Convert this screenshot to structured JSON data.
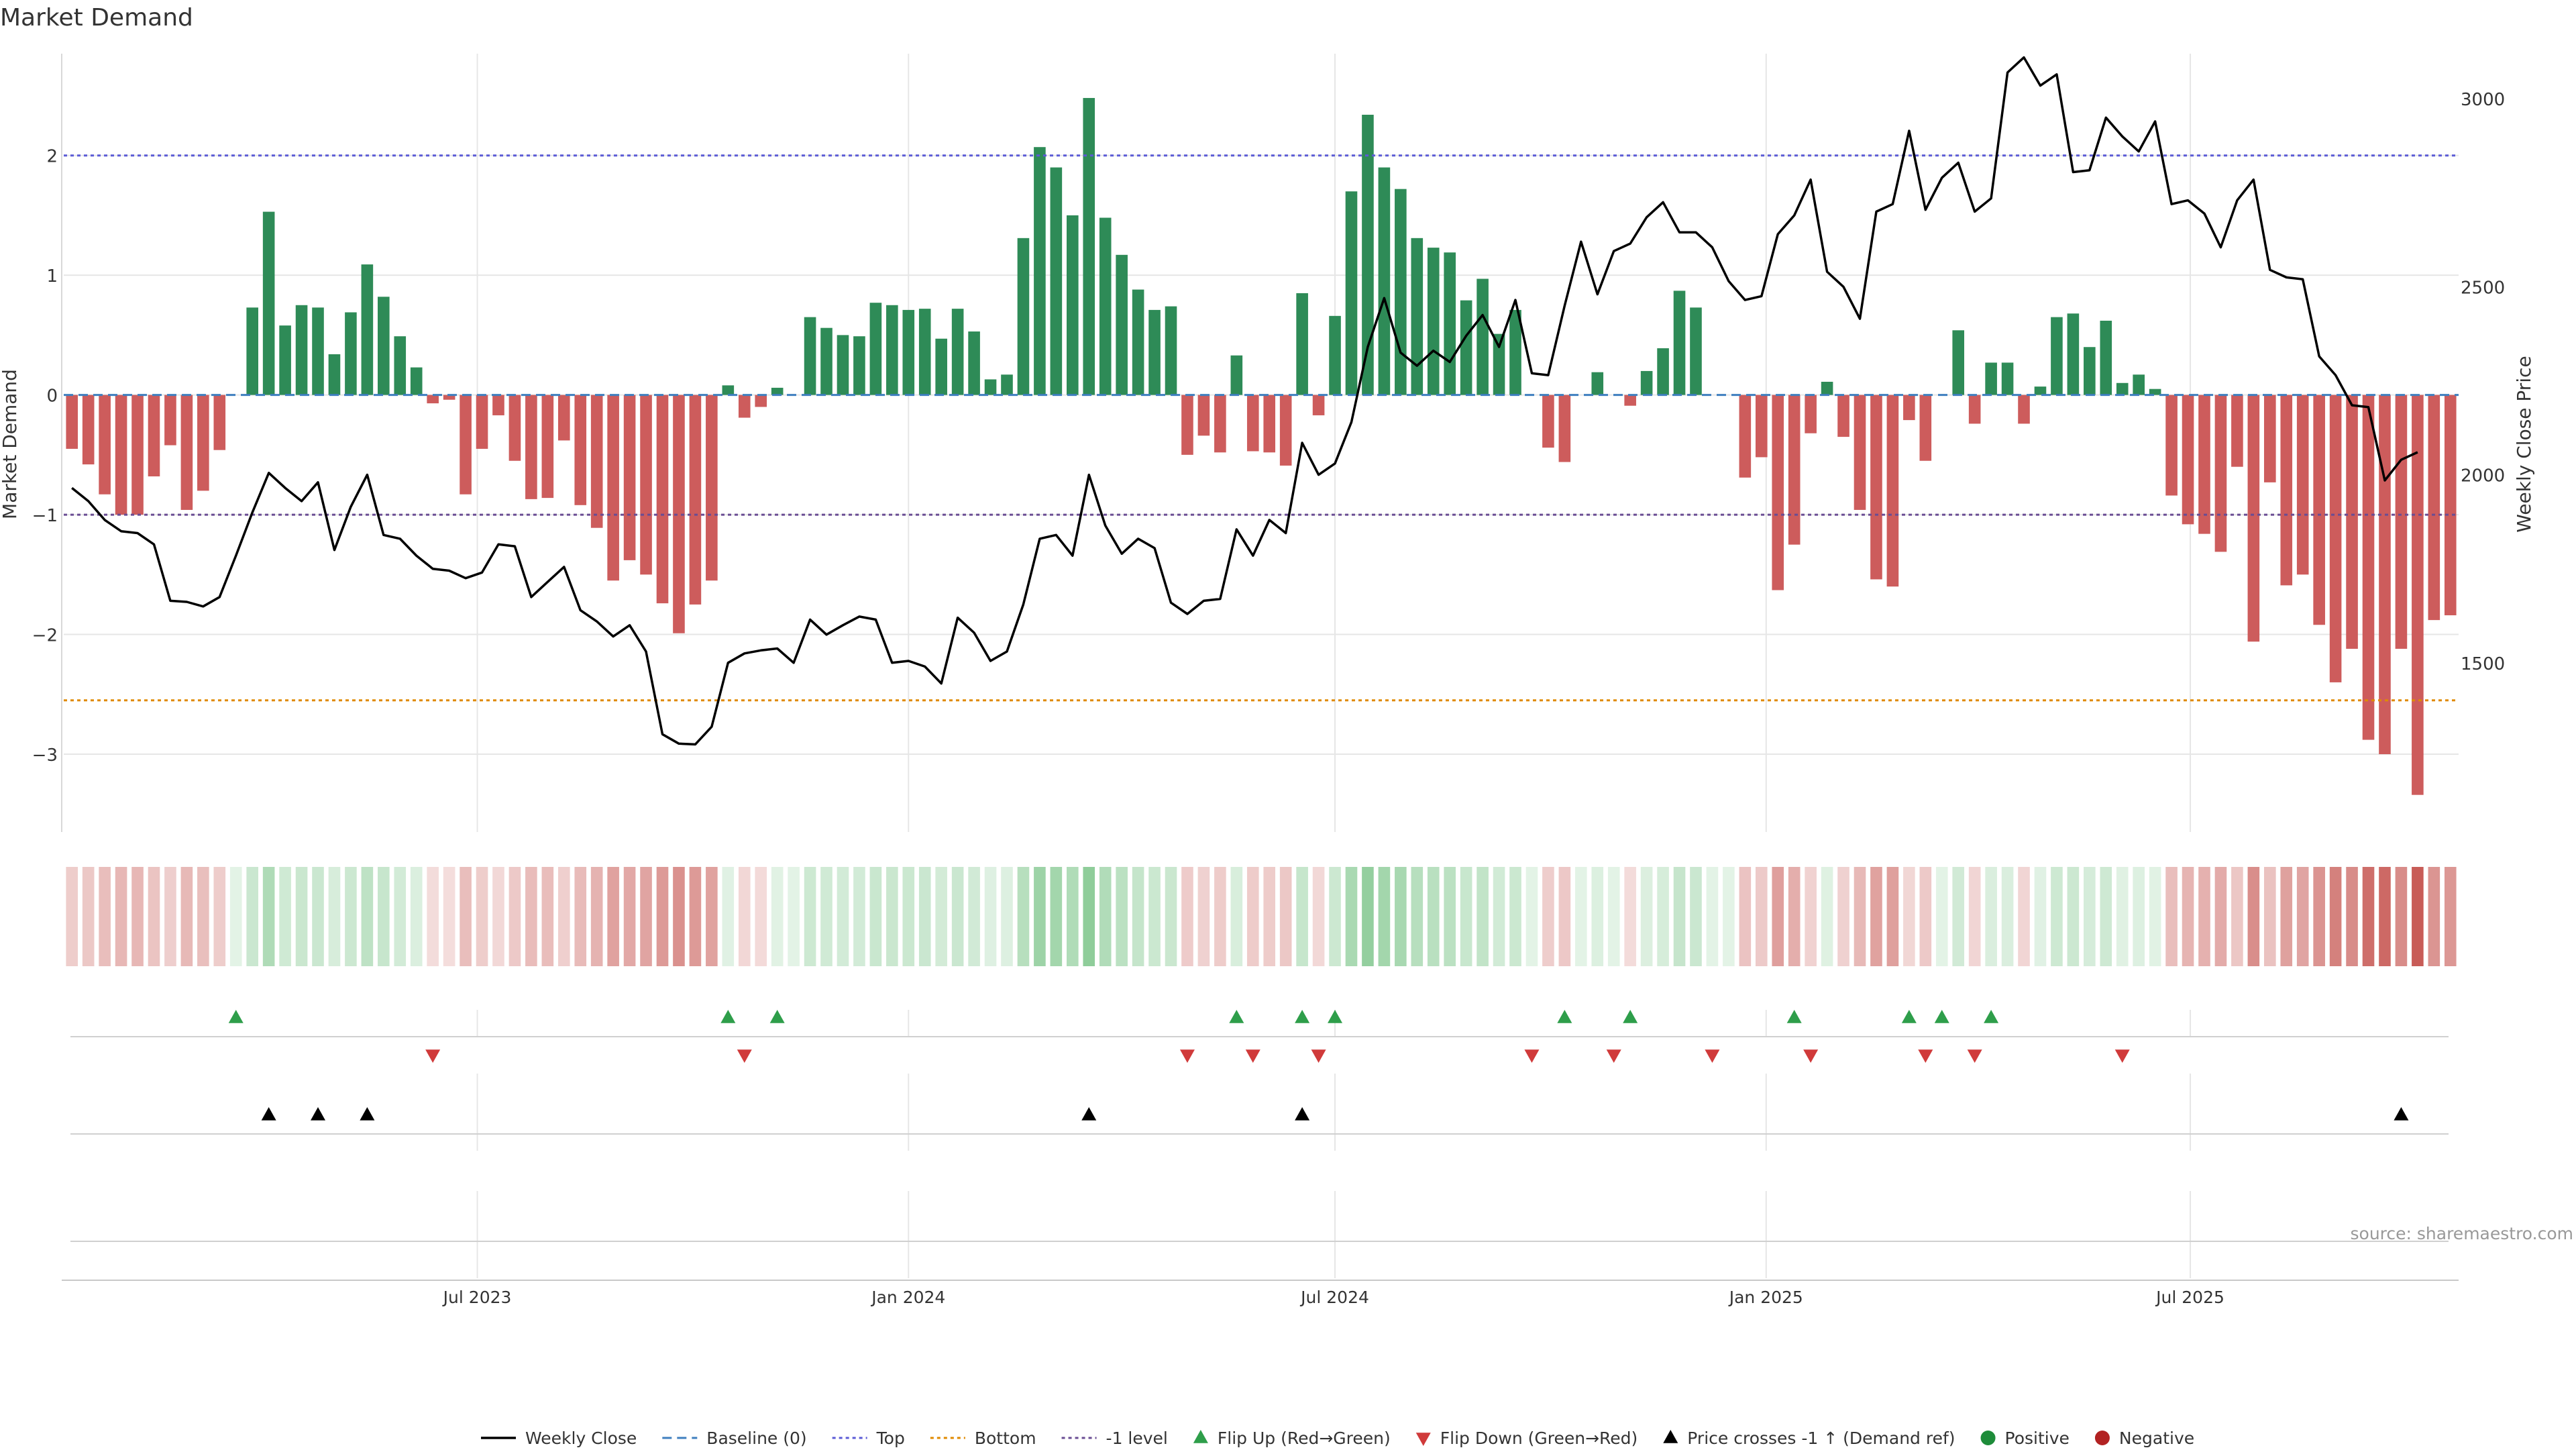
{
  "chart_data": {
    "type": "bar",
    "title": "Market Demand",
    "ylabel": "Market Demand",
    "y2label": "Weekly Close Price",
    "ylim": [
      -3.65,
      2.85
    ],
    "y2lim": [
      1050,
      3120
    ],
    "yticks": [
      2,
      1,
      0,
      -1,
      -2,
      -3
    ],
    "ytick_labels": [
      "2",
      "1",
      "0",
      "−1",
      "−2",
      "−3"
    ],
    "y2ticks": [
      3000,
      2500,
      2000,
      1500
    ],
    "start_date": "2023-01-09",
    "xticks": [
      {
        "label": "Jul 2023",
        "date": "2023-07-01"
      },
      {
        "label": "Jan 2024",
        "date": "2024-01-01"
      },
      {
        "label": "Jul 2024",
        "date": "2024-07-01"
      },
      {
        "label": "Jan 2025",
        "date": "2025-01-01"
      },
      {
        "label": "Jul 2025",
        "date": "2025-07-01"
      }
    ],
    "reference_lines": [
      {
        "name": "Top",
        "value": 2,
        "color": "#5b5bd6"
      },
      {
        "name": "Bottom",
        "value": -2.55,
        "color": "#e08a00"
      },
      {
        "name": "-1 level",
        "value": -1,
        "color": "#6a4c93"
      }
    ],
    "demand": [
      -0.45,
      -0.58,
      -0.83,
      -1.0,
      -1.0,
      -0.68,
      -0.42,
      -0.96,
      -0.8,
      -0.46,
      0,
      0.73,
      1.53,
      0.58,
      0.75,
      0.73,
      0.34,
      0.69,
      1.09,
      0.82,
      0.49,
      0.23,
      -0.07,
      -0.04,
      -0.83,
      -0.45,
      -0.17,
      -0.55,
      -0.87,
      -0.86,
      -0.38,
      -0.92,
      -1.11,
      -1.55,
      -1.38,
      -1.5,
      -1.74,
      -1.99,
      -1.75,
      -1.55,
      0.08,
      -0.19,
      -0.1,
      0.06,
      0,
      0.65,
      0.56,
      0.5,
      0.49,
      0.77,
      0.75,
      0.71,
      0.72,
      0.47,
      0.72,
      0.53,
      0.13,
      0.17,
      1.31,
      2.07,
      1.9,
      1.5,
      2.48,
      1.48,
      1.17,
      0.88,
      0.71,
      0.74,
      -0.5,
      -0.34,
      -0.48,
      0.33,
      -0.47,
      -0.48,
      -0.59,
      0.85,
      -0.17,
      0.66,
      1.7,
      2.34,
      1.9,
      1.72,
      1.31,
      1.23,
      1.19,
      0.79,
      0.97,
      0.51,
      0.71,
      0,
      -0.44,
      -0.56,
      0,
      0.19,
      0,
      -0.09,
      0.2,
      0.39,
      0.87,
      0.73,
      0,
      0,
      -0.69,
      -0.52,
      -1.63,
      -1.25,
      -0.32,
      0.11,
      -0.35,
      -0.96,
      -1.54,
      -1.6,
      -0.21,
      -0.55,
      0,
      0.54,
      -0.24,
      0.27,
      0.27,
      -0.24,
      0.07,
      0.65,
      0.68,
      0.4,
      0.62,
      0.1,
      0.17,
      0.05,
      -0.84,
      -1.08,
      -1.16,
      -1.31,
      -0.6,
      -2.06,
      -0.73,
      -1.59,
      -1.5,
      -1.92,
      -2.4,
      -2.12,
      -2.88,
      -3.0,
      -2.12,
      -3.34,
      -1.88,
      -1.84
    ],
    "close": [
      1965,
      1930,
      1880,
      1850,
      1845,
      1815,
      1665,
      1662,
      1650,
      1675,
      1785,
      1900,
      2005,
      1965,
      1930,
      1980,
      1800,
      1915,
      2000,
      1840,
      1830,
      1785,
      1750,
      1745,
      1725,
      1740,
      1815,
      1810,
      1675,
      1715,
      1755,
      1640,
      1610,
      1570,
      1600,
      1530,
      1310,
      1285,
      1283,
      1330,
      1500,
      1525,
      1533,
      1538,
      1500,
      1615,
      1575,
      1600,
      1623,
      1615,
      1500,
      1505,
      1490,
      1445,
      1620,
      1580,
      1505,
      1530,
      1655,
      1830,
      1840,
      1785,
      2000,
      1865,
      1790,
      1830,
      1805,
      1660,
      1630,
      1665,
      1670,
      1855,
      1785,
      1880,
      1845,
      2085,
      2000,
      2030,
      2140,
      2340,
      2470,
      2325,
      2290,
      2330,
      2300,
      2370,
      2425,
      2340,
      2465,
      2270,
      2265,
      2450,
      2620,
      2480,
      2595,
      2615,
      2685,
      2725,
      2645,
      2645,
      2605,
      2515,
      2465,
      2475,
      2640,
      2690,
      2785,
      2540,
      2500,
      2415,
      2700,
      2720,
      2915,
      2705,
      2790,
      2830,
      2700,
      2735,
      3070,
      3110,
      3035,
      3065,
      2805,
      2810,
      2950,
      2900,
      2860,
      2940,
      2720,
      2730,
      2695,
      2605,
      2730,
      2785,
      2545,
      2525,
      2520,
      2315,
      2265,
      2185,
      2180,
      1985,
      2040,
      2060
    ]
  },
  "panels": {
    "flip_up_indices": [
      10,
      40,
      43,
      71,
      75,
      77,
      91,
      95,
      105,
      112,
      114,
      117
    ],
    "flip_down_indices": [
      22,
      41,
      68,
      72,
      76,
      89,
      94,
      100,
      106,
      113,
      116,
      125
    ],
    "price_cross_indices": [
      12,
      15,
      18,
      62,
      75,
      142
    ]
  },
  "legend": [
    {
      "label": "Weekly Close",
      "symbol": "line",
      "color": "#000000"
    },
    {
      "label": "Baseline (0)",
      "symbol": "dash",
      "color": "#3f7fbf"
    },
    {
      "label": "Top",
      "symbol": "dot",
      "color": "#5b5bd6"
    },
    {
      "label": "Bottom",
      "symbol": "dot",
      "color": "#e08a00"
    },
    {
      "label": "-1 level",
      "symbol": "dot",
      "color": "#6a4c93"
    },
    {
      "label": "Flip Up (Red→Green)",
      "symbol": "tri-up",
      "color": "#2e9e4a"
    },
    {
      "label": "Flip Down (Green→Red)",
      "symbol": "tri-down",
      "color": "#d03a3a"
    },
    {
      "label": "Price crosses -1 ↑ (Demand ref)",
      "symbol": "tri-up",
      "color": "#000000"
    },
    {
      "label": "Positive",
      "symbol": "circle",
      "color": "#1e8c3a"
    },
    {
      "label": "Negative",
      "symbol": "circle",
      "color": "#b22222"
    }
  ],
  "source": "source: sharemaestro.com",
  "colors": {
    "positive": "#2e8b57",
    "negative": "#cd5c5c",
    "line": "#000000",
    "grid": "#e6e6e6"
  }
}
